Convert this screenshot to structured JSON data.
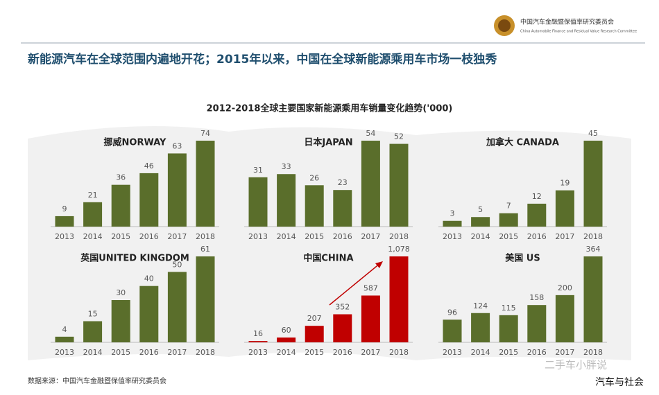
{
  "header": {
    "logo_name": "中国汽车金融暨保值率研究委员会",
    "logo_name_en": "China Automobile Finance and Residual Value Research Committee",
    "title": "新能源汽车在全球范围内遍地开花；2015年以来，中国在全球新能源乘用车市场一枝独秀",
    "chart_title": "2012-2018全球主要国家新能源乘用车销量变化趋势('000)"
  },
  "chart_data": [
    {
      "type": "bar",
      "title": "挪威NORWAY",
      "categories": [
        "2013",
        "2014",
        "2015",
        "2016",
        "2017",
        "2018"
      ],
      "values": [
        9,
        21,
        36,
        46,
        63,
        74
      ],
      "color": "#5a6e2b"
    },
    {
      "type": "bar",
      "title": "日本JAPAN",
      "categories": [
        "2013",
        "2014",
        "2015",
        "2016",
        "2017",
        "2018"
      ],
      "values": [
        31,
        33,
        26,
        23,
        54,
        52
      ],
      "color": "#5a6e2b"
    },
    {
      "type": "bar",
      "title": "加拿大 CANADA",
      "categories": [
        "2013",
        "2014",
        "2015",
        "2016",
        "2017",
        "2018"
      ],
      "values": [
        3,
        5,
        7,
        12,
        19,
        45
      ],
      "color": "#5a6e2b"
    },
    {
      "type": "bar",
      "title": "英国UNITED KINGDOM",
      "categories": [
        "2013",
        "2014",
        "2015",
        "2016",
        "2017",
        "2018"
      ],
      "values": [
        4,
        15,
        30,
        40,
        50,
        61
      ],
      "color": "#5a6e2b"
    },
    {
      "type": "bar",
      "title": "中国CHINA",
      "categories": [
        "2013",
        "2014",
        "2015",
        "2016",
        "2017",
        "2018"
      ],
      "values": [
        16,
        60,
        207,
        352,
        587,
        1078
      ],
      "value_labels": [
        "16",
        "60",
        "207",
        "352",
        "587",
        "1,078"
      ],
      "color": "#c00000"
    },
    {
      "type": "bar",
      "title": "美国 US",
      "categories": [
        "2013",
        "2014",
        "2015",
        "2016",
        "2017",
        "2018"
      ],
      "values": [
        96,
        124,
        115,
        158,
        200,
        364
      ],
      "color": "#5a6e2b"
    }
  ],
  "footer": {
    "source": "数据来源：中国汽车金融暨保值率研究委员会",
    "watermark": "二手车小胖说",
    "credit": "汽车与社会"
  }
}
